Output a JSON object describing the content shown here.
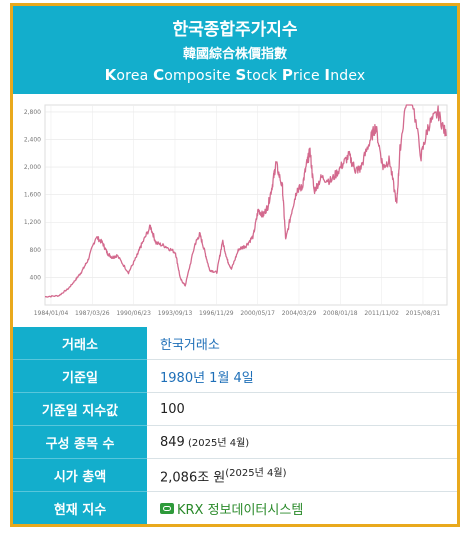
{
  "header": {
    "title_ko": "한국종합주가지수",
    "title_hanja": "韓國綜合株價指數",
    "title_en_parts": [
      "K",
      "orea ",
      "C",
      "omposite ",
      "S",
      "tock ",
      "P",
      "rice ",
      "I",
      "ndex"
    ]
  },
  "chart_data": {
    "type": "line",
    "title": "",
    "xlabel": "",
    "ylabel": "",
    "x_tick_labels": [
      "1984/01/04",
      "1987/03/26",
      "1990/06/23",
      "1993/09/13",
      "1996/11/29",
      "2000/05/17",
      "2004/03/29",
      "2008/01/18",
      "2011/11/02",
      "2015/08/31"
    ],
    "y_ticks": [
      400,
      800,
      1200,
      1600,
      2000,
      2400,
      2800
    ],
    "ylim": [
      0,
      2900
    ],
    "grid": true,
    "series": [
      {
        "color": "#d36a8e",
        "points": [
          [
            "1984-01",
            120
          ],
          [
            "1985-06",
            135
          ],
          [
            "1986-06",
            240
          ],
          [
            "1987-03",
            370
          ],
          [
            "1987-10",
            480
          ],
          [
            "1988-06",
            650
          ],
          [
            "1989-04",
            990
          ],
          [
            "1989-12",
            900
          ],
          [
            "1990-06",
            750
          ],
          [
            "1990-12",
            690
          ],
          [
            "1991-06",
            720
          ],
          [
            "1992-08",
            470
          ],
          [
            "1993-06",
            700
          ],
          [
            "1993-12",
            870
          ],
          [
            "1994-11",
            1140
          ],
          [
            "1995-06",
            900
          ],
          [
            "1996-06",
            850
          ],
          [
            "1997-06",
            760
          ],
          [
            "1997-12",
            380
          ],
          [
            "1998-06",
            280
          ],
          [
            "1999-06",
            880
          ],
          [
            "1999-12",
            1030
          ],
          [
            "2000-06",
            780
          ],
          [
            "2000-12",
            510
          ],
          [
            "2001-09",
            470
          ],
          [
            "2002-04",
            930
          ],
          [
            "2002-10",
            650
          ],
          [
            "2003-03",
            520
          ],
          [
            "2003-12",
            810
          ],
          [
            "2004-09",
            860
          ],
          [
            "2005-06",
            1000
          ],
          [
            "2005-12",
            1380
          ],
          [
            "2006-06",
            1300
          ],
          [
            "2006-12",
            1430
          ],
          [
            "2007-06",
            1770
          ],
          [
            "2007-10",
            2060
          ],
          [
            "2008-06",
            1700
          ],
          [
            "2008-10",
            940
          ],
          [
            "2009-06",
            1390
          ],
          [
            "2009-12",
            1680
          ],
          [
            "2010-06",
            1700
          ],
          [
            "2010-12",
            2050
          ],
          [
            "2011-04",
            2230
          ],
          [
            "2011-09",
            1650
          ],
          [
            "2012-06",
            1850
          ],
          [
            "2013-06",
            1800
          ],
          [
            "2014-06",
            2000
          ],
          [
            "2015-04",
            2170
          ],
          [
            "2015-12",
            1960
          ],
          [
            "2016-06",
            1970
          ],
          [
            "2017-06",
            2390
          ],
          [
            "2018-01",
            2590
          ],
          [
            "2018-10",
            2000
          ],
          [
            "2019-06",
            2100
          ],
          [
            "2020-03",
            1460
          ],
          [
            "2020-07",
            2250
          ],
          [
            "2021-06",
            3300
          ],
          [
            "2022-09",
            2150
          ],
          [
            "2023-06",
            2600
          ],
          [
            "2024-06",
            2790
          ],
          [
            "2025-04",
            2450
          ]
        ]
      }
    ]
  },
  "rows": [
    {
      "key": "거래소",
      "value": "한국거래소",
      "small": "",
      "style": "blue"
    },
    {
      "key": "기준일",
      "value": "1980년 1월 4일",
      "small": "",
      "style": "blue"
    },
    {
      "key": "기준일 지수값",
      "value": "100",
      "small": "",
      "style": "plain"
    },
    {
      "key": "구성 종목 수",
      "value": "849",
      "small": " (2025년 4월)",
      "style": "plain"
    },
    {
      "key": "시가 총액",
      "value": "2,086조 원",
      "small": "(2025년 4월)",
      "style": "plain"
    },
    {
      "key": "현재 지수",
      "value": "KRX 정보데이터시스템",
      "small": "",
      "style": "link",
      "icon": "external-link-icon"
    }
  ]
}
